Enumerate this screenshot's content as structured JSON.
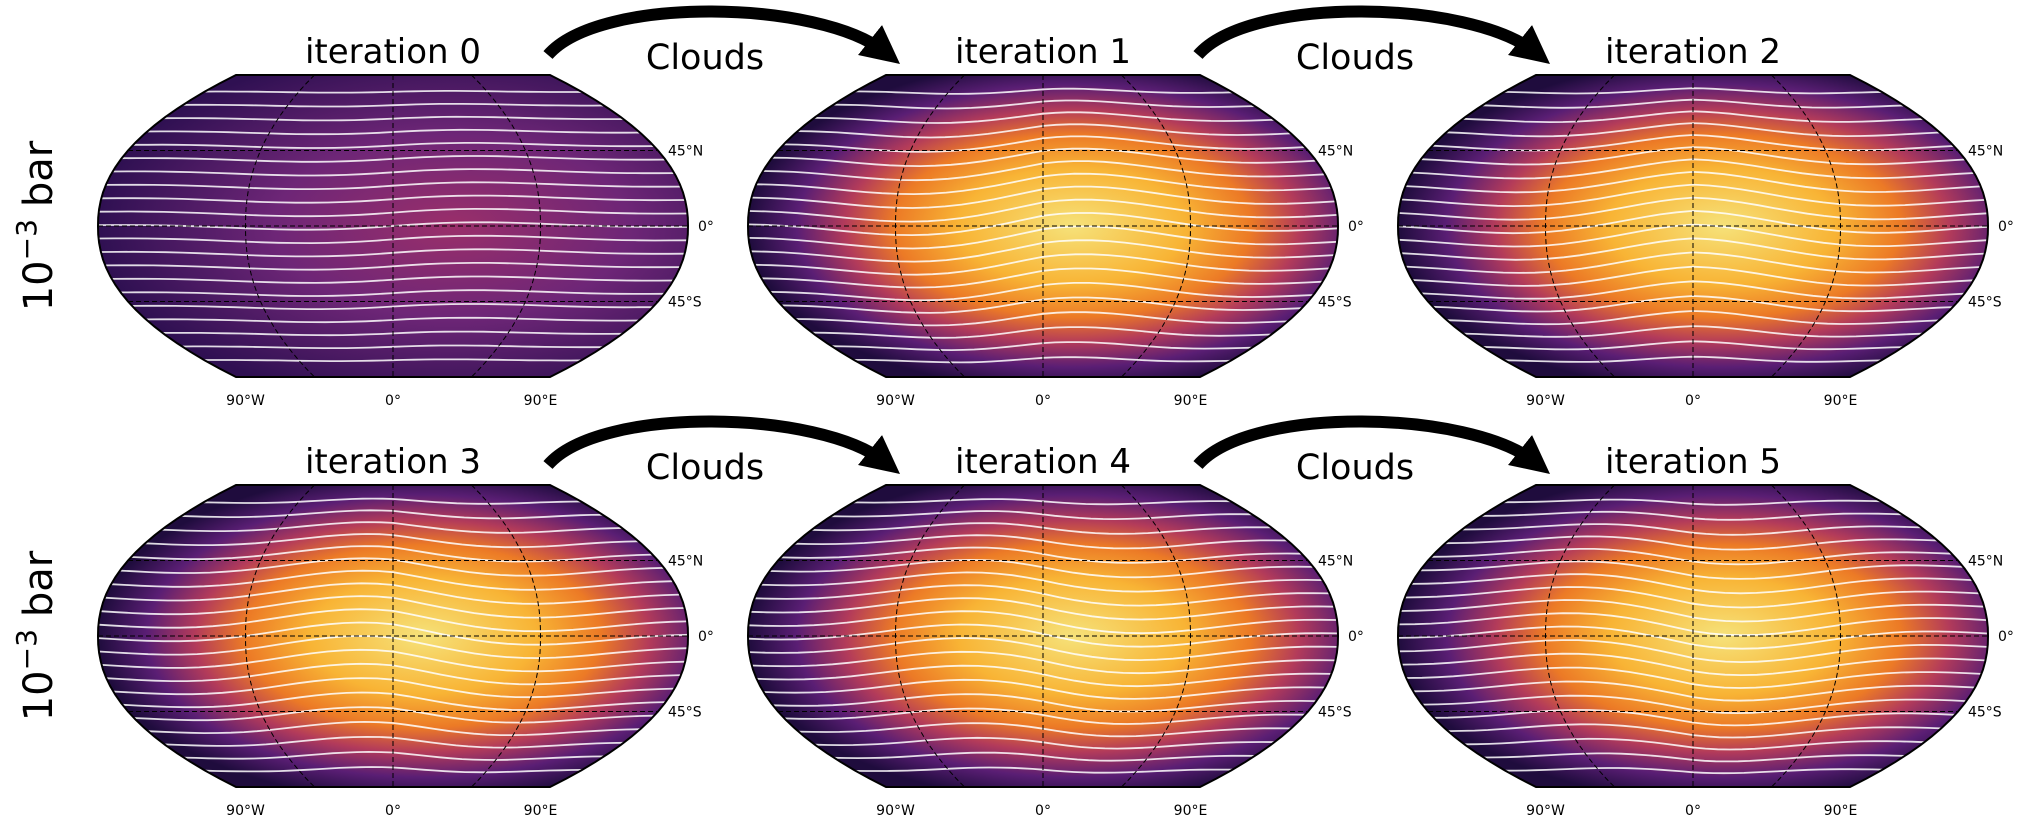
{
  "row_labels": [
    {
      "base": "10",
      "exponent": "−3",
      "unit": "bar"
    },
    {
      "base": "10",
      "exponent": "−3",
      "unit": "bar"
    }
  ],
  "panels": [
    {
      "title": "iteration 0"
    },
    {
      "title": "iteration 1"
    },
    {
      "title": "iteration 2"
    },
    {
      "title": "iteration 3"
    },
    {
      "title": "iteration 4"
    },
    {
      "title": "iteration 5"
    }
  ],
  "arrows": [
    {
      "label": "Clouds"
    },
    {
      "label": "Clouds"
    },
    {
      "label": "Clouds"
    },
    {
      "label": "Clouds"
    }
  ],
  "lat_labels": [
    "45°N",
    "0°",
    "45°S"
  ],
  "lon_labels": [
    "90°W",
    "0°",
    "90°E"
  ]
}
